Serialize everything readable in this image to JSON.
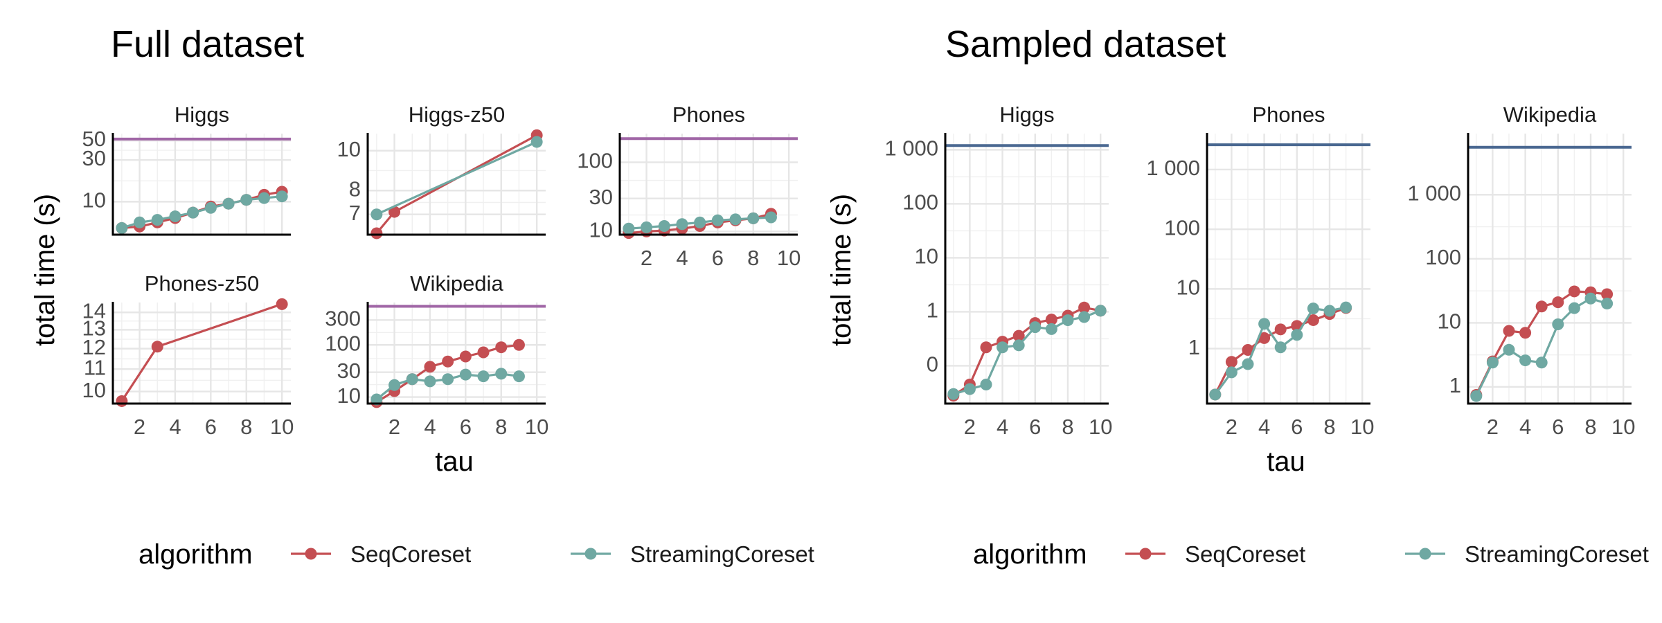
{
  "colors": {
    "SeqCoreset": "#c44e52",
    "StreamingCoreset": "#6fa8a2",
    "ref_purple": "#a066a6",
    "ref_blue": "#4a6891"
  },
  "legend": {
    "title": "algorithm",
    "entries": [
      "SeqCoreset",
      "StreamingCoreset"
    ]
  },
  "chart_data": [
    {
      "type": "line",
      "group_title": "Full dataset",
      "xlabel": "tau",
      "ylabel": "total time (s)",
      "yscale": "log",
      "legend_position": "bottom",
      "facets": [
        {
          "title": "Higgs",
          "ylim": [
            4.2,
            60
          ],
          "yticks": [
            10,
            30,
            50
          ],
          "show_x_ticks": false,
          "reference_line": {
            "y": 52,
            "color": "purple"
          },
          "series": [
            {
              "name": "SeqCoreset",
              "x": [
                1,
                2,
                3,
                4,
                5,
                6,
                7,
                8,
                9,
                10
              ],
              "y": [
                5.0,
                5.2,
                5.8,
                6.5,
                7.5,
                8.8,
                9.5,
                10.5,
                12.0,
                13.0
              ]
            },
            {
              "name": "StreamingCoreset",
              "x": [
                1,
                2,
                3,
                4,
                5,
                6,
                7,
                8,
                9,
                10
              ],
              "y": [
                5.0,
                5.8,
                6.2,
                6.8,
                7.5,
                8.5,
                9.5,
                10.5,
                11.0,
                11.5
              ]
            }
          ]
        },
        {
          "title": "Higgs-z50",
          "ylim": [
            6.25,
            11.0
          ],
          "yticks": [
            7,
            8,
            10
          ],
          "show_x_ticks": false,
          "reference_line": null,
          "series": [
            {
              "name": "SeqCoreset",
              "x": [
                1,
                2,
                10
              ],
              "y": [
                6.3,
                7.1,
                10.9
              ]
            },
            {
              "name": "StreamingCoreset",
              "x": [
                1,
                10
              ],
              "y": [
                7.0,
                10.5
              ]
            }
          ]
        },
        {
          "title": "Phones",
          "ylim": [
            9.0,
            260
          ],
          "yticks": [
            10,
            30,
            100
          ],
          "show_x_ticks": true,
          "reference_line": {
            "y": 220,
            "color": "purple"
          },
          "series": [
            {
              "name": "SeqCoreset",
              "x": [
                1,
                2,
                3,
                4,
                5,
                6,
                7,
                8,
                9
              ],
              "y": [
                9.5,
                10.0,
                10.3,
                11.0,
                12.0,
                13.5,
                14.5,
                15.5,
                18.0
              ]
            },
            {
              "name": "StreamingCoreset",
              "x": [
                1,
                2,
                3,
                4,
                5,
                6,
                7,
                8,
                9
              ],
              "y": [
                11.0,
                11.5,
                12.0,
                12.8,
                13.5,
                14.5,
                15.0,
                15.5,
                16.0
              ]
            }
          ]
        },
        {
          "title": "Phones-z50",
          "ylim": [
            9.5,
            14.6
          ],
          "yticks": [
            10,
            11,
            12,
            13,
            14
          ],
          "show_x_ticks": true,
          "reference_line": null,
          "series": [
            {
              "name": "SeqCoreset",
              "x": [
                1,
                3,
                10
              ],
              "y": [
                9.6,
                12.1,
                14.5
              ]
            }
          ]
        },
        {
          "title": "Wikipedia",
          "ylim": [
            7.5,
            650
          ],
          "yticks": [
            10,
            30,
            100,
            300
          ],
          "show_x_ticks": true,
          "reference_line": {
            "y": 550,
            "color": "purple"
          },
          "series": [
            {
              "name": "SeqCoreset",
              "x": [
                1,
                2,
                3,
                4,
                5,
                6,
                7,
                8,
                9
              ],
              "y": [
                8.0,
                13.0,
                22.0,
                38.0,
                48.0,
                60.0,
                72.0,
                90.0,
                100.0
              ]
            },
            {
              "name": "StreamingCoreset",
              "x": [
                1,
                2,
                3,
                4,
                5,
                6,
                7,
                8,
                9
              ],
              "y": [
                9.0,
                17.0,
                22.0,
                20.0,
                22.0,
                27.0,
                25.0,
                28.0,
                25.0
              ]
            }
          ]
        }
      ]
    },
    {
      "type": "line",
      "group_title": "Sampled dataset",
      "xlabel": "tau",
      "ylabel": "total time (s)",
      "yscale": "log",
      "legend_position": "bottom",
      "facets": [
        {
          "title": "Higgs",
          "ylim": [
            0.02,
            2000
          ],
          "yticks": [
            0.1,
            1,
            10,
            100,
            1000
          ],
          "ytick_labels": [
            "0",
            "1",
            "10",
            "100",
            "1 000"
          ],
          "show_x_ticks": true,
          "reference_line": {
            "y": 1200,
            "color": "blue"
          },
          "series": [
            {
              "name": "SeqCoreset",
              "x": [
                1,
                2,
                3,
                4,
                5,
                6,
                7,
                8,
                9,
                10
              ],
              "y": [
                0.028,
                0.045,
                0.22,
                0.28,
                0.36,
                0.62,
                0.72,
                0.85,
                1.2,
                1.05
              ]
            },
            {
              "name": "StreamingCoreset",
              "x": [
                1,
                2,
                3,
                4,
                5,
                6,
                7,
                8,
                9,
                10
              ],
              "y": [
                0.03,
                0.037,
                0.045,
                0.22,
                0.24,
                0.52,
                0.48,
                0.7,
                0.8,
                1.05
              ]
            }
          ]
        },
        {
          "title": "Phones",
          "ylim": [
            0.12,
            4000
          ],
          "yticks": [
            1,
            10,
            100,
            1000
          ],
          "ytick_labels": [
            "1",
            "10",
            "100",
            "1 000"
          ],
          "show_x_ticks": true,
          "reference_line": {
            "y": 2600,
            "color": "blue"
          },
          "series": [
            {
              "name": "SeqCoreset",
              "x": [
                1,
                2,
                3,
                4,
                5,
                6,
                7,
                8,
                9
              ],
              "y": [
                0.17,
                0.6,
                0.95,
                1.5,
                2.1,
                2.4,
                3.0,
                3.8,
                4.8
              ]
            },
            {
              "name": "StreamingCoreset",
              "x": [
                1,
                2,
                3,
                4,
                5,
                6,
                7,
                8,
                9
              ],
              "y": [
                0.17,
                0.4,
                0.55,
                2.6,
                1.05,
                1.7,
                4.7,
                4.3,
                4.9
              ]
            }
          ]
        },
        {
          "title": "Wikipedia",
          "ylim": [
            0.55,
            9000
          ],
          "yticks": [
            1,
            10,
            100,
            1000
          ],
          "ytick_labels": [
            "1",
            "10",
            "100",
            "1 000"
          ],
          "show_x_ticks": true,
          "reference_line": {
            "y": 5500,
            "color": "blue"
          },
          "series": [
            {
              "name": "SeqCoreset",
              "x": [
                1,
                2,
                3,
                4,
                5,
                6,
                7,
                8,
                9
              ],
              "y": [
                0.75,
                2.5,
                7.5,
                7.0,
                18.0,
                21.0,
                31.0,
                30.0,
                28.0
              ]
            },
            {
              "name": "StreamingCoreset",
              "x": [
                1,
                2,
                3,
                4,
                5,
                6,
                7,
                8,
                9
              ],
              "y": [
                0.72,
                2.4,
                3.8,
                2.6,
                2.4,
                9.5,
                17.0,
                24.0,
                20.0
              ]
            }
          ]
        }
      ]
    }
  ]
}
